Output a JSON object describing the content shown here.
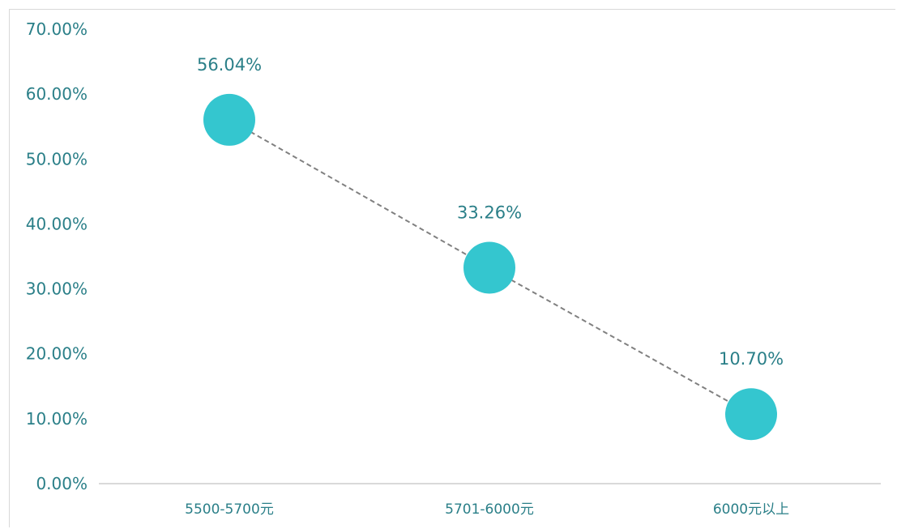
{
  "chart_data": {
    "type": "line",
    "categories": [
      "5500-5700元",
      "5701-6000元",
      "6000元以上"
    ],
    "series": [
      {
        "values": [
          56.04,
          33.26,
          10.7
        ],
        "data_labels": [
          "56.04%",
          "33.26%",
          "10.70%"
        ]
      }
    ],
    "ylim": [
      0,
      70
    ],
    "yticks": [
      0,
      10,
      20,
      30,
      40,
      50,
      60,
      70
    ],
    "ytick_labels": [
      "0.00%",
      "10.00%",
      "20.00%",
      "30.00%",
      "40.00%",
      "50.00%",
      "60.00%",
      "70.00%"
    ],
    "grid": false,
    "legend": "none",
    "line_style": "dashed",
    "colors": {
      "marker": "#34c6cf",
      "line": "#808080",
      "text": "#2a7f88",
      "axis": "#d9d9d9"
    }
  }
}
